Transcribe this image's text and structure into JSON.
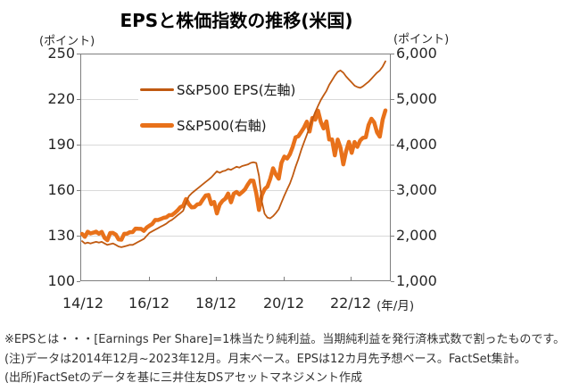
{
  "title": "EPSと株価指数の推移(米国)",
  "left_axis": {
    "unit": "(ポイント)",
    "ticks": [
      "250",
      "220",
      "190",
      "160",
      "130",
      "100"
    ]
  },
  "right_axis": {
    "unit": "(ポイント)",
    "ticks": [
      "6,000",
      "5,000",
      "4,000",
      "3,000",
      "2,000",
      "1,000"
    ]
  },
  "x_axis": {
    "ticks": [
      "14/12",
      "16/12",
      "18/12",
      "20/12",
      "22/12"
    ],
    "unit_label": "(年/月)"
  },
  "legend": {
    "items": [
      {
        "label": "S&P500 EPS(左軸)",
        "style": "thin",
        "color": "#c05a11"
      },
      {
        "label": "S&P500(右軸)",
        "style": "thick",
        "color": "#e8711a"
      }
    ]
  },
  "footnotes": [
    "※EPSとは・・・[Earnings Per Share]=1株当たり純利益。当期純利益を発行済株式数で割ったものです。",
    "(注)データは2014年12月~2023年12月。月末ベース。EPSは12カ月先予想ベース。FactSet集計。",
    "(出所)FactSetのデータを基に三井住友DSアセットマネジメント作成"
  ],
  "chart_data": {
    "type": "line",
    "x_start": "2014/12",
    "x_end": "2023/12",
    "frequency": "monthly",
    "x_tick_labels": [
      "14/12",
      "16/12",
      "18/12",
      "20/12",
      "22/12"
    ],
    "grid": "horizontal",
    "legend_position": "upper-left-inside",
    "series": [
      {
        "id": "eps",
        "name": "S&P500 EPS(左軸)",
        "axis": "left",
        "ylim": [
          100,
          250
        ],
        "color": "#c05a11",
        "width": "thin",
        "values": [
          127,
          125.5,
          126,
          125.5,
          126,
          126.5,
          126,
          126.5,
          125.5,
          124.5,
          125,
          125.5,
          124.5,
          123.5,
          123,
          123.5,
          124,
          124.5,
          124.5,
          125.5,
          126.5,
          127.5,
          128.5,
          130.5,
          132.5,
          133.5,
          134.5,
          135.5,
          136.5,
          137.5,
          138.5,
          140,
          141,
          142.5,
          144,
          145.5,
          147,
          152,
          156.5,
          158.5,
          160,
          161.5,
          163,
          164.5,
          166,
          167.5,
          169,
          171,
          173,
          172,
          173,
          173.5,
          174.5,
          174,
          175,
          176,
          175.5,
          176.5,
          177,
          177.5,
          178.5,
          179,
          178.5,
          170,
          153,
          145,
          142.5,
          142,
          143.5,
          145.5,
          148,
          152.5,
          157,
          161,
          165,
          170,
          176,
          181,
          187,
          192,
          197,
          202,
          207,
          212,
          216,
          220,
          223,
          226,
          230,
          233,
          236,
          238.5,
          239.5,
          238,
          235.5,
          233.5,
          231.5,
          229.5,
          228.5,
          228,
          229,
          230.5,
          232,
          234,
          236,
          238,
          239.5,
          242,
          245.5
        ]
      },
      {
        "id": "sp500",
        "name": "S&P500(右軸)",
        "axis": "right",
        "ylim": [
          1000,
          6000
        ],
        "color": "#e8711a",
        "width": "thick",
        "values": [
          2059,
          1995,
          2105,
          2068,
          2086,
          2107,
          2063,
          2104,
          1972,
          1920,
          2079,
          2080,
          2044,
          1940,
          1932,
          2060,
          2065,
          2097,
          2099,
          2174,
          2171,
          2168,
          2126,
          2199,
          2239,
          2279,
          2364,
          2363,
          2384,
          2412,
          2423,
          2470,
          2472,
          2519,
          2575,
          2648,
          2674,
          2824,
          2714,
          2641,
          2648,
          2705,
          2718,
          2816,
          2902,
          2914,
          2712,
          2760,
          2507,
          2704,
          2784,
          2834,
          2946,
          2752,
          2942,
          2980,
          2926,
          2977,
          3038,
          3141,
          3231,
          3226,
          2954,
          2585,
          2912,
          3044,
          3100,
          3271,
          3500,
          3363,
          3270,
          3622,
          3756,
          3714,
          3811,
          3973,
          4181,
          4204,
          4298,
          4395,
          4523,
          4308,
          4605,
          4567,
          4766,
          4516,
          4374,
          4530,
          4132,
          4132,
          3785,
          4130,
          3955,
          3586,
          3872,
          4080,
          3840,
          4077,
          3970,
          4109,
          4169,
          4180,
          4450,
          4589,
          4508,
          4288,
          4194,
          4568,
          4770
        ]
      }
    ]
  }
}
